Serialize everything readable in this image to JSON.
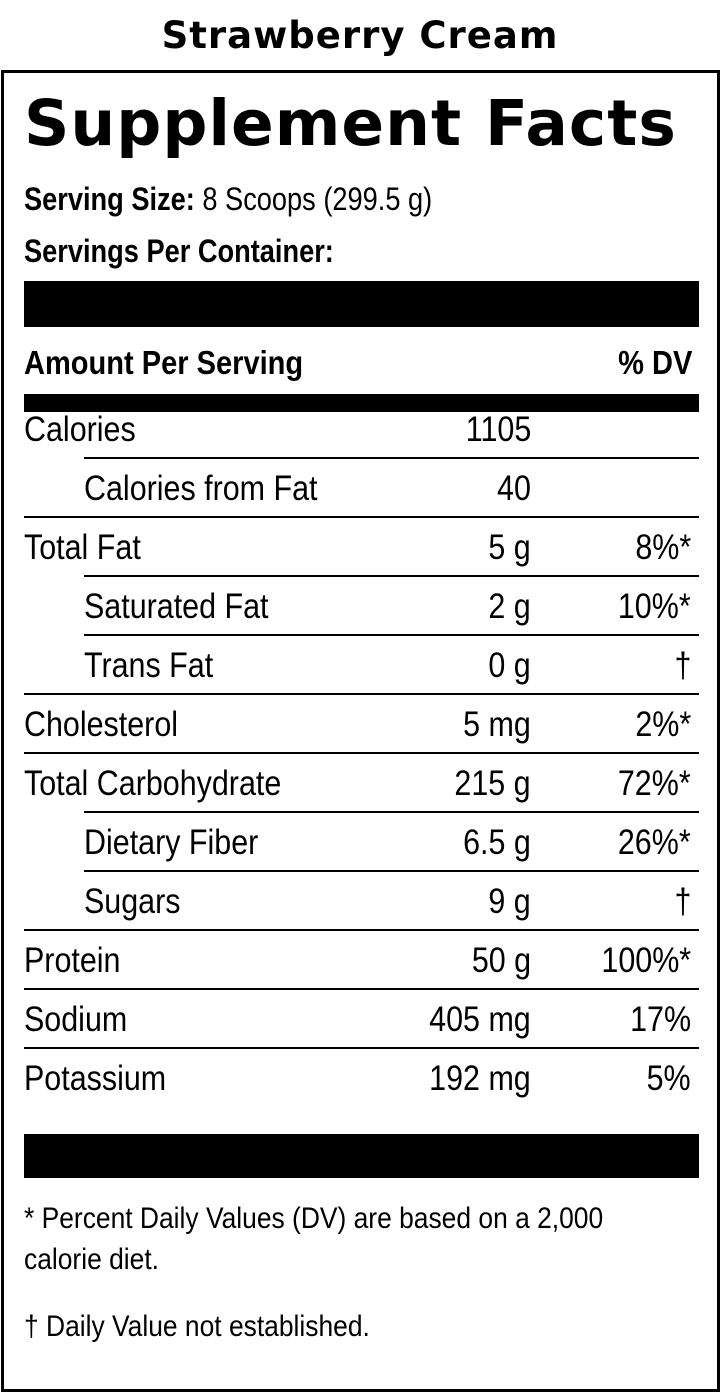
{
  "flavor": "Strawberry Cream",
  "title": "Supplement Facts",
  "serving_size_label": "Serving Size:",
  "serving_size_value": "8 Scoops (299.5 g)",
  "servings_per_container_label": "Servings Per Container:",
  "header": {
    "amount_label": "Amount Per Serving",
    "dv_label": "% DV"
  },
  "rows": [
    {
      "name": "Calories",
      "amount": "1105",
      "dv": ""
    },
    {
      "name": "Calories from Fat",
      "amount": "40",
      "dv": ""
    },
    {
      "name": "Total Fat",
      "amount": "5 g",
      "dv": "8%*"
    },
    {
      "name": "Saturated Fat",
      "amount": "2 g",
      "dv": "10%*"
    },
    {
      "name": "Trans Fat",
      "amount": "0 g",
      "dv": "†"
    },
    {
      "name": "Cholesterol",
      "amount": "5 mg",
      "dv": "2%*"
    },
    {
      "name": "Total Carbohydrate",
      "amount": "215 g",
      "dv": "72%*"
    },
    {
      "name": "Dietary Fiber",
      "amount": "6.5 g",
      "dv": "26%*"
    },
    {
      "name": "Sugars",
      "amount": "9 g",
      "dv": "†"
    },
    {
      "name": "Protein",
      "amount": "50 g",
      "dv": "100%*"
    },
    {
      "name": "Sodium",
      "amount": "405 mg",
      "dv": "17%"
    },
    {
      "name": "Potassium",
      "amount": "192 mg",
      "dv": "5%"
    }
  ],
  "footnotes": {
    "percent_dv_line1": "* Percent Daily Values (DV) are based on a 2,000",
    "percent_dv_line2": "calorie diet.",
    "dagger": "† Daily Value not established."
  }
}
